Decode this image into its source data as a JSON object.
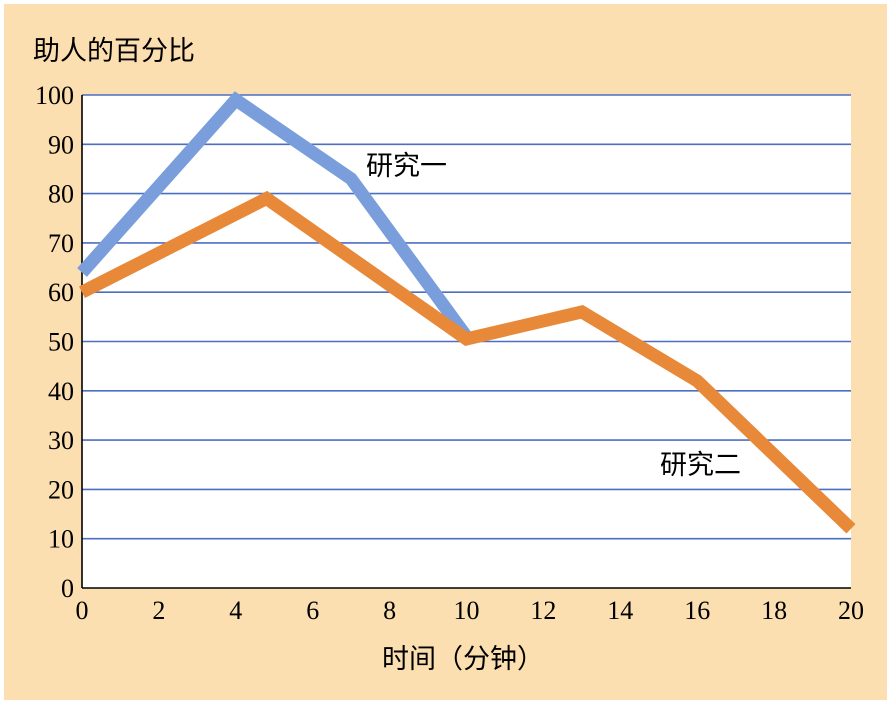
{
  "chart_data": {
    "type": "line",
    "title": "",
    "ylabel": "助人的百分比",
    "xlabel": "时间（分钟）",
    "xlim": [
      0,
      20
    ],
    "ylim": [
      0,
      100
    ],
    "xticks": [
      0,
      2,
      4,
      6,
      8,
      10,
      12,
      14,
      16,
      18,
      20
    ],
    "yticks": [
      0,
      10,
      20,
      30,
      40,
      50,
      60,
      70,
      80,
      90,
      100
    ],
    "grid": "horizontal",
    "series": [
      {
        "name": "研究一",
        "color": "#7A9EDB",
        "points": [
          [
            0,
            64
          ],
          [
            4,
            99
          ],
          [
            7,
            83
          ],
          [
            10,
            51
          ]
        ]
      },
      {
        "name": "研究二",
        "color": "#E8893A",
        "points": [
          [
            0,
            60
          ],
          [
            4.8,
            79
          ],
          [
            10,
            50.5
          ],
          [
            13,
            56
          ],
          [
            16,
            42
          ],
          [
            20,
            12
          ]
        ]
      }
    ]
  }
}
